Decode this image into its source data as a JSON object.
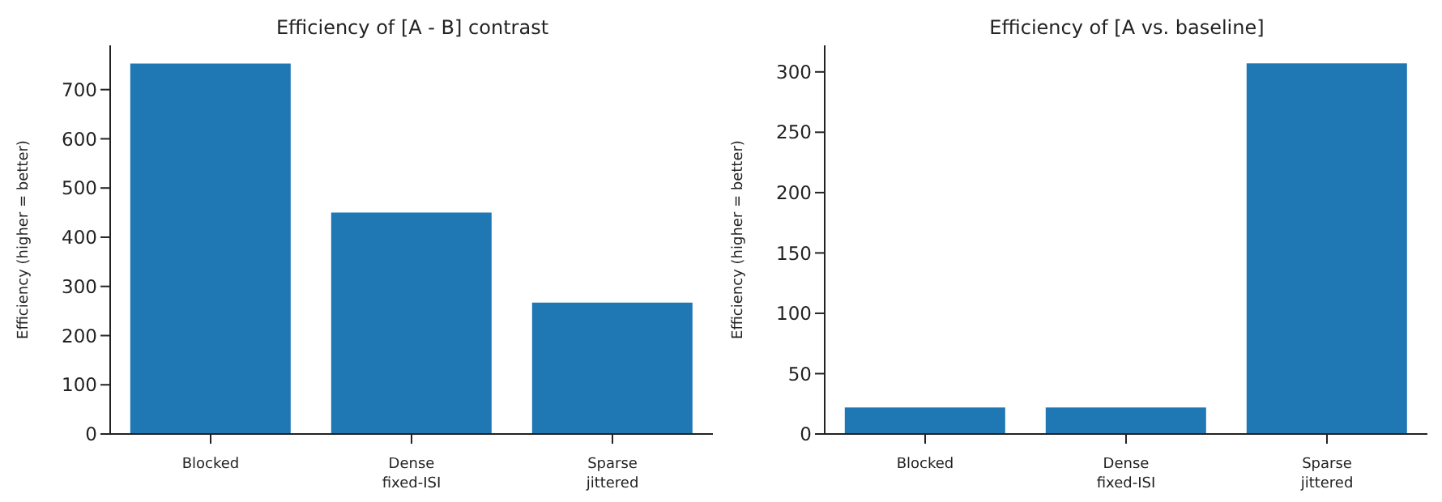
{
  "chart_data": [
    {
      "type": "bar",
      "title": "Efficiency of [A - B] contrast",
      "ylabel": "Efficiency (higher = better)",
      "categories": [
        "Blocked",
        "Dense\nfixed-ISI",
        "Sparse\njittered"
      ],
      "values": [
        753,
        450,
        267
      ],
      "color": "#1f77b4",
      "ylim": [
        0,
        790
      ],
      "yticks": [
        0,
        100,
        200,
        300,
        400,
        500,
        600,
        700
      ],
      "grid": false,
      "legend": false
    },
    {
      "type": "bar",
      "title": "Efficiency of [A vs. baseline]",
      "ylabel": "Efficiency (higher = better)",
      "categories": [
        "Blocked",
        "Dense\nfixed-ISI",
        "Sparse\njittered"
      ],
      "values": [
        22,
        22,
        307
      ],
      "color": "#1f77b4",
      "ylim": [
        0,
        322
      ],
      "yticks": [
        0,
        50,
        100,
        150,
        200,
        250,
        300
      ],
      "grid": false,
      "legend": false
    }
  ]
}
